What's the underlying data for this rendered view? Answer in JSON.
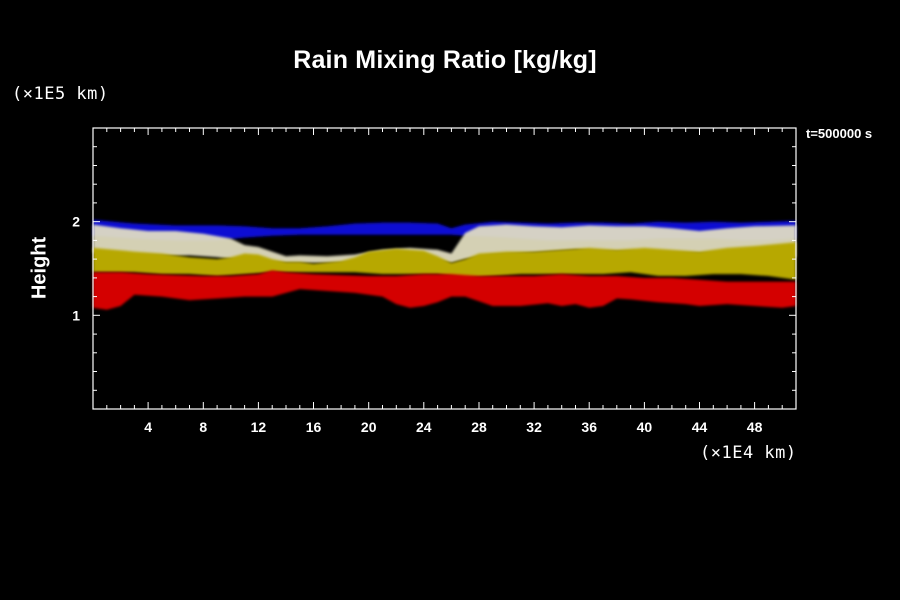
{
  "chart_data": {
    "type": "heatmap",
    "title": "Rain Mixing Ratio [kg/kg]",
    "ylabel": "Height",
    "xunit": "(×1E4 km)",
    "yunit": "(×1E5 km)",
    "annotation": "t=500000 s",
    "xlim": [
      0,
      51
    ],
    "ylim": [
      0,
      3
    ],
    "x_ticks": [
      4,
      8,
      12,
      16,
      20,
      24,
      28,
      32,
      36,
      40,
      44,
      48
    ],
    "y_ticks": [
      1,
      2
    ],
    "layers": [
      {
        "color": "#0a0ad2",
        "upper": [
          [
            0,
            2.02
          ],
          [
            3,
            1.98
          ],
          [
            6,
            1.96
          ],
          [
            9,
            1.96
          ],
          [
            11,
            1.95
          ],
          [
            13,
            1.93
          ],
          [
            15,
            1.93
          ],
          [
            17,
            1.95
          ],
          [
            19,
            1.98
          ],
          [
            21,
            1.99
          ],
          [
            23,
            1.99
          ],
          [
            25,
            1.98
          ],
          [
            26,
            1.93
          ],
          [
            27,
            1.97
          ],
          [
            29,
            2.0
          ],
          [
            31,
            1.99
          ],
          [
            33,
            1.98
          ],
          [
            35,
            1.99
          ],
          [
            37,
            1.99
          ],
          [
            39,
            1.98
          ],
          [
            41,
            2.0
          ],
          [
            43,
            1.99
          ],
          [
            45,
            2.0
          ],
          [
            47,
            1.99
          ],
          [
            49,
            2.0
          ],
          [
            51,
            2.01
          ]
        ],
        "lower": [
          [
            51,
            1.82
          ],
          [
            49,
            1.8
          ],
          [
            47,
            1.8
          ],
          [
            45,
            1.82
          ],
          [
            43,
            1.82
          ],
          [
            41,
            1.82
          ],
          [
            39,
            1.8
          ],
          [
            37,
            1.8
          ],
          [
            35,
            1.8
          ],
          [
            33,
            1.8
          ],
          [
            31,
            1.82
          ],
          [
            29,
            1.84
          ],
          [
            27,
            1.85
          ],
          [
            26,
            1.86
          ],
          [
            25,
            1.86
          ],
          [
            23,
            1.86
          ],
          [
            21,
            1.86
          ],
          [
            19,
            1.86
          ],
          [
            17,
            1.86
          ],
          [
            15,
            1.86
          ],
          [
            13,
            1.85
          ],
          [
            11,
            1.83
          ],
          [
            9,
            1.8
          ],
          [
            6,
            1.8
          ],
          [
            3,
            1.82
          ],
          [
            0,
            1.85
          ]
        ]
      },
      {
        "color": "#e6e2c4",
        "upper": [
          [
            0,
            1.97
          ],
          [
            2,
            1.93
          ],
          [
            4,
            1.9
          ],
          [
            6,
            1.9
          ],
          [
            8,
            1.87
          ],
          [
            10,
            1.82
          ],
          [
            11,
            1.75
          ],
          [
            12,
            1.73
          ],
          [
            13,
            1.68
          ],
          [
            14,
            1.63
          ],
          [
            15,
            1.64
          ],
          [
            17,
            1.63
          ],
          [
            19,
            1.65
          ],
          [
            21,
            1.7
          ],
          [
            23,
            1.72
          ],
          [
            25,
            1.7
          ],
          [
            26,
            1.66
          ],
          [
            27,
            1.88
          ],
          [
            28,
            1.95
          ],
          [
            30,
            1.97
          ],
          [
            32,
            1.95
          ],
          [
            34,
            1.94
          ],
          [
            36,
            1.96
          ],
          [
            38,
            1.95
          ],
          [
            40,
            1.95
          ],
          [
            42,
            1.93
          ],
          [
            44,
            1.9
          ],
          [
            46,
            1.93
          ],
          [
            48,
            1.95
          ],
          [
            51,
            1.96
          ]
        ],
        "lower": [
          [
            51,
            1.62
          ],
          [
            49,
            1.62
          ],
          [
            47,
            1.66
          ],
          [
            45,
            1.66
          ],
          [
            43,
            1.66
          ],
          [
            41,
            1.66
          ],
          [
            39,
            1.68
          ],
          [
            37,
            1.68
          ],
          [
            35,
            1.7
          ],
          [
            33,
            1.68
          ],
          [
            31,
            1.66
          ],
          [
            29,
            1.64
          ],
          [
            27,
            1.6
          ],
          [
            26,
            1.56
          ],
          [
            25,
            1.58
          ],
          [
            23,
            1.6
          ],
          [
            21,
            1.58
          ],
          [
            19,
            1.56
          ],
          [
            17,
            1.56
          ],
          [
            15,
            1.56
          ],
          [
            13,
            1.56
          ],
          [
            11,
            1.58
          ],
          [
            9,
            1.62
          ],
          [
            7,
            1.64
          ],
          [
            5,
            1.63
          ],
          [
            3,
            1.63
          ],
          [
            0,
            1.67
          ]
        ]
      },
      {
        "color": "#b7a800",
        "upper": [
          [
            0,
            1.72
          ],
          [
            3,
            1.68
          ],
          [
            5,
            1.66
          ],
          [
            7,
            1.62
          ],
          [
            9,
            1.6
          ],
          [
            10,
            1.62
          ],
          [
            11,
            1.66
          ],
          [
            12,
            1.65
          ],
          [
            13,
            1.6
          ],
          [
            14,
            1.57
          ],
          [
            15,
            1.57
          ],
          [
            16,
            1.55
          ],
          [
            18,
            1.58
          ],
          [
            19,
            1.62
          ],
          [
            20,
            1.68
          ],
          [
            22,
            1.71
          ],
          [
            24,
            1.69
          ],
          [
            25,
            1.63
          ],
          [
            26,
            1.56
          ],
          [
            27,
            1.6
          ],
          [
            28,
            1.66
          ],
          [
            30,
            1.68
          ],
          [
            32,
            1.68
          ],
          [
            34,
            1.7
          ],
          [
            36,
            1.72
          ],
          [
            38,
            1.7
          ],
          [
            40,
            1.72
          ],
          [
            42,
            1.7
          ],
          [
            44,
            1.68
          ],
          [
            46,
            1.72
          ],
          [
            48,
            1.74
          ],
          [
            51,
            1.78
          ]
        ],
        "lower": [
          [
            51,
            1.38
          ],
          [
            49,
            1.42
          ],
          [
            47,
            1.44
          ],
          [
            45,
            1.44
          ],
          [
            43,
            1.42
          ],
          [
            41,
            1.42
          ],
          [
            39,
            1.46
          ],
          [
            37,
            1.44
          ],
          [
            35,
            1.44
          ],
          [
            33,
            1.44
          ],
          [
            31,
            1.44
          ],
          [
            29,
            1.42
          ],
          [
            27,
            1.4
          ],
          [
            26,
            1.42
          ],
          [
            25,
            1.44
          ],
          [
            23,
            1.44
          ],
          [
            21,
            1.44
          ],
          [
            19,
            1.46
          ],
          [
            17,
            1.46
          ],
          [
            15,
            1.46
          ],
          [
            13,
            1.46
          ],
          [
            11,
            1.44
          ],
          [
            9,
            1.42
          ],
          [
            7,
            1.44
          ],
          [
            5,
            1.44
          ],
          [
            3,
            1.46
          ],
          [
            0,
            1.46
          ]
        ]
      },
      {
        "color": "#d40000",
        "upper": [
          [
            0,
            1.46
          ],
          [
            2,
            1.46
          ],
          [
            4,
            1.44
          ],
          [
            6,
            1.43
          ],
          [
            8,
            1.42
          ],
          [
            10,
            1.42
          ],
          [
            12,
            1.44
          ],
          [
            13,
            1.48
          ],
          [
            14,
            1.46
          ],
          [
            16,
            1.44
          ],
          [
            18,
            1.43
          ],
          [
            20,
            1.42
          ],
          [
            22,
            1.42
          ],
          [
            24,
            1.44
          ],
          [
            26,
            1.44
          ],
          [
            28,
            1.42
          ],
          [
            30,
            1.42
          ],
          [
            32,
            1.42
          ],
          [
            34,
            1.44
          ],
          [
            36,
            1.42
          ],
          [
            38,
            1.42
          ],
          [
            40,
            1.4
          ],
          [
            42,
            1.4
          ],
          [
            44,
            1.38
          ],
          [
            46,
            1.36
          ],
          [
            48,
            1.36
          ],
          [
            51,
            1.36
          ]
        ],
        "lower": [
          [
            51,
            1.1
          ],
          [
            50,
            1.08
          ],
          [
            48,
            1.1
          ],
          [
            46,
            1.12
          ],
          [
            44,
            1.1
          ],
          [
            43,
            1.12
          ],
          [
            41,
            1.14
          ],
          [
            39,
            1.17
          ],
          [
            38,
            1.18
          ],
          [
            37,
            1.1
          ],
          [
            36,
            1.08
          ],
          [
            35,
            1.12
          ],
          [
            34,
            1.1
          ],
          [
            33,
            1.13
          ],
          [
            31,
            1.1
          ],
          [
            29,
            1.1
          ],
          [
            28,
            1.15
          ],
          [
            27,
            1.2
          ],
          [
            26,
            1.2
          ],
          [
            25,
            1.14
          ],
          [
            24,
            1.1
          ],
          [
            23,
            1.08
          ],
          [
            22,
            1.12
          ],
          [
            21,
            1.2
          ],
          [
            19,
            1.24
          ],
          [
            17,
            1.26
          ],
          [
            15,
            1.28
          ],
          [
            13,
            1.2
          ],
          [
            11,
            1.2
          ],
          [
            9,
            1.18
          ],
          [
            7,
            1.16
          ],
          [
            5,
            1.2
          ],
          [
            3,
            1.22
          ],
          [
            2,
            1.1
          ],
          [
            1,
            1.06
          ],
          [
            0,
            1.08
          ]
        ]
      }
    ]
  }
}
